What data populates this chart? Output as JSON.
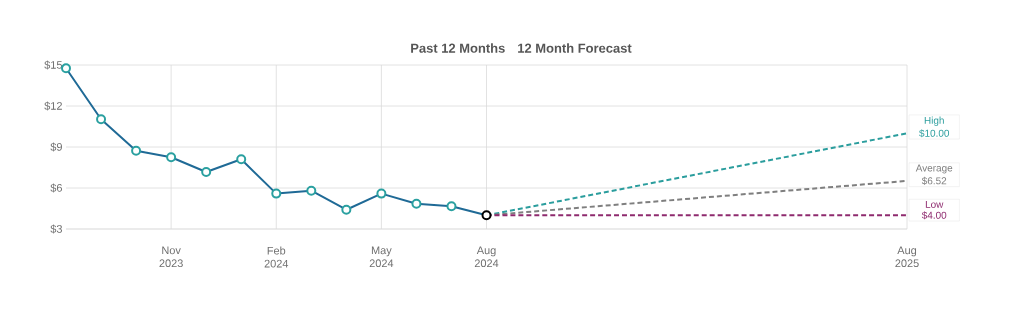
{
  "chart_data": {
    "type": "line",
    "title": "Past 12 Months",
    "subtitle": "12 Month Forecast",
    "xlim": [
      "2023-08",
      "2025-08"
    ],
    "ylim": [
      3,
      15
    ],
    "xticks": [
      {
        "value": "2023-11",
        "label": "Nov 2023"
      },
      {
        "value": "2024-02",
        "label": "Feb 2024"
      },
      {
        "value": "2024-05",
        "label": "May 2024"
      },
      {
        "value": "2024-08",
        "label": "Aug 2024"
      },
      {
        "value": "2025-08",
        "label": "Aug 2025"
      }
    ],
    "yticks": [
      {
        "value": 3,
        "label": "$3"
      },
      {
        "value": 6,
        "label": "$6"
      },
      {
        "value": 9,
        "label": "$9"
      },
      {
        "value": 12,
        "label": "$12"
      },
      {
        "value": 15,
        "label": "$15"
      }
    ],
    "grid": true,
    "series": [
      {
        "color": "#1f6a96",
        "marker": "circle",
        "line_style": "solid",
        "x": [
          "2023-08",
          "2023-09",
          "2023-10",
          "2023-11",
          "2023-12",
          "2024-01",
          "2024-02",
          "2024-03",
          "2024-04",
          "2024-05",
          "2024-06",
          "2024-07",
          "2024-08"
        ],
        "values": [
          14.76,
          11.03,
          8.73,
          8.25,
          7.17,
          8.1,
          5.59,
          5.8,
          4.41,
          5.59,
          4.85,
          4.66,
          4.0
        ],
        "colors": [
          "#2aa0a0",
          "#2aa0a0",
          "#2aa0a0",
          "#2aa0a0",
          "#2aa0a0",
          "#2aa0a0",
          "#2aa0a0",
          "#2aa0a0",
          "#2aa0a0",
          "#2aa0a0",
          "#2aa0a0",
          "#2aa0a0",
          "#000000"
        ]
      },
      {
        "name": "High",
        "color": "#2a9d9d",
        "marker": "none",
        "line_style": "dashed",
        "x": [
          "2024-08",
          "2025-08"
        ],
        "values": [
          4.0,
          10.0
        ],
        "value_labels": [
          null,
          "$10.00"
        ]
      },
      {
        "name": "Average",
        "color": "#7f7f7f",
        "marker": "none",
        "line_style": "dashed",
        "x": [
          "2024-08",
          "2025-08"
        ],
        "values": [
          4.0,
          6.52
        ],
        "value_labels": [
          null,
          "$6.52"
        ]
      },
      {
        "name": "Low",
        "color": "#8e2a6e",
        "marker": "none",
        "line_style": "dashed",
        "x": [
          "2024-08",
          "2025-08"
        ],
        "values": [
          4.0,
          4.0
        ],
        "value_labels": [
          null,
          "$4.00"
        ]
      }
    ]
  }
}
